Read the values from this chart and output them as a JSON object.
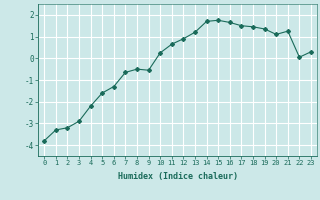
{
  "x": [
    0,
    1,
    2,
    3,
    4,
    5,
    6,
    7,
    8,
    9,
    10,
    11,
    12,
    13,
    14,
    15,
    16,
    17,
    18,
    19,
    20,
    21,
    22,
    23
  ],
  "y": [
    -3.8,
    -3.3,
    -3.2,
    -2.9,
    -2.2,
    -1.6,
    -1.3,
    -0.65,
    -0.5,
    -0.55,
    0.25,
    0.65,
    0.9,
    1.2,
    1.7,
    1.75,
    1.65,
    1.5,
    1.45,
    1.35,
    1.1,
    1.25,
    0.05,
    0.3
  ],
  "xlabel": "Humidex (Indice chaleur)",
  "ylabel": "",
  "line_color": "#1a6b5a",
  "marker": "D",
  "marker_size": 2.0,
  "bg_color": "#cce8e8",
  "grid_color": "#ffffff",
  "xlim": [
    -0.5,
    23.5
  ],
  "ylim": [
    -4.5,
    2.5
  ],
  "yticks": [
    -4,
    -3,
    -2,
    -1,
    0,
    1,
    2
  ],
  "xticks": [
    0,
    1,
    2,
    3,
    4,
    5,
    6,
    7,
    8,
    9,
    10,
    11,
    12,
    13,
    14,
    15,
    16,
    17,
    18,
    19,
    20,
    21,
    22,
    23
  ],
  "xlabel_fontsize": 6.0,
  "tick_fontsize": 5.0
}
